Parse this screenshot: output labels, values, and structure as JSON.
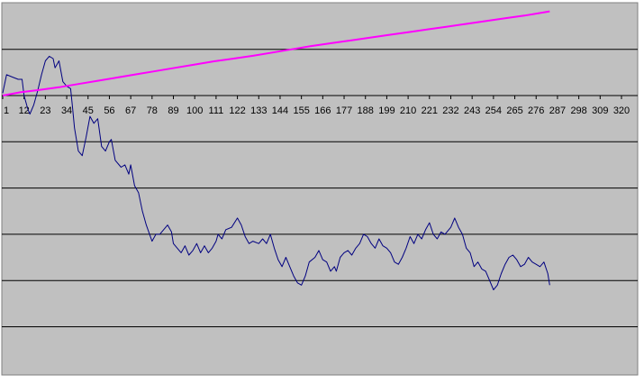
{
  "chart_data": {
    "type": "line",
    "title": "",
    "xlabel": "",
    "ylabel": "",
    "x_tick_labels": [
      "1",
      "12",
      "23",
      "34",
      "45",
      "56",
      "67",
      "78",
      "89",
      "100",
      "111",
      "122",
      "133",
      "144",
      "155",
      "166",
      "177",
      "188",
      "199",
      "210",
      "221",
      "232",
      "243",
      "254",
      "265",
      "276",
      "287",
      "298",
      "309",
      "320"
    ],
    "x_range": [
      1,
      326
    ],
    "y_range": [
      -6,
      2
    ],
    "y_gridlines": [
      -5,
      -4,
      -3,
      -2,
      -1,
      0,
      1
    ],
    "grid": true,
    "legend": "none",
    "plot_background": "#c0c0c0",
    "series": [
      {
        "color": "#000080",
        "points": [
          [
            1,
            0.05
          ],
          [
            3,
            0.45
          ],
          [
            6,
            0.4
          ],
          [
            9,
            0.35
          ],
          [
            11,
            0.35
          ],
          [
            12,
            0.0
          ],
          [
            14,
            -0.3
          ],
          [
            15,
            -0.4
          ],
          [
            17,
            -0.2
          ],
          [
            19,
            0.1
          ],
          [
            21,
            0.45
          ],
          [
            23,
            0.75
          ],
          [
            25,
            0.85
          ],
          [
            27,
            0.8
          ],
          [
            28,
            0.6
          ],
          [
            30,
            0.75
          ],
          [
            32,
            0.3
          ],
          [
            34,
            0.2
          ],
          [
            36,
            0.15
          ],
          [
            37,
            -0.25
          ],
          [
            38,
            -0.7
          ],
          [
            40,
            -1.2
          ],
          [
            42,
            -1.3
          ],
          [
            44,
            -0.9
          ],
          [
            46,
            -0.45
          ],
          [
            48,
            -0.6
          ],
          [
            50,
            -0.5
          ],
          [
            52,
            -1.1
          ],
          [
            54,
            -1.2
          ],
          [
            56,
            -1.0
          ],
          [
            57,
            -0.95
          ],
          [
            59,
            -1.4
          ],
          [
            62,
            -1.55
          ],
          [
            64,
            -1.5
          ],
          [
            66,
            -1.7
          ],
          [
            67,
            -1.5
          ],
          [
            69,
            -1.95
          ],
          [
            71,
            -2.1
          ],
          [
            73,
            -2.5
          ],
          [
            75,
            -2.8
          ],
          [
            78,
            -3.15
          ],
          [
            80,
            -3.0
          ],
          [
            82,
            -3.0
          ],
          [
            84,
            -2.9
          ],
          [
            86,
            -2.8
          ],
          [
            88,
            -2.95
          ],
          [
            89,
            -3.2
          ],
          [
            91,
            -3.3
          ],
          [
            93,
            -3.4
          ],
          [
            95,
            -3.25
          ],
          [
            97,
            -3.45
          ],
          [
            99,
            -3.35
          ],
          [
            101,
            -3.2
          ],
          [
            103,
            -3.4
          ],
          [
            105,
            -3.25
          ],
          [
            107,
            -3.4
          ],
          [
            109,
            -3.3
          ],
          [
            111,
            -3.15
          ],
          [
            112,
            -3.0
          ],
          [
            114,
            -3.1
          ],
          [
            116,
            -2.9
          ],
          [
            119,
            -2.85
          ],
          [
            122,
            -2.65
          ],
          [
            124,
            -2.8
          ],
          [
            126,
            -3.05
          ],
          [
            128,
            -3.2
          ],
          [
            130,
            -3.15
          ],
          [
            133,
            -3.2
          ],
          [
            135,
            -3.1
          ],
          [
            137,
            -3.2
          ],
          [
            139,
            -3.0
          ],
          [
            141,
            -3.3
          ],
          [
            143,
            -3.55
          ],
          [
            145,
            -3.7
          ],
          [
            147,
            -3.5
          ],
          [
            149,
            -3.7
          ],
          [
            151,
            -3.9
          ],
          [
            153,
            -4.05
          ],
          [
            155,
            -4.1
          ],
          [
            157,
            -3.9
          ],
          [
            159,
            -3.6
          ],
          [
            162,
            -3.5
          ],
          [
            164,
            -3.35
          ],
          [
            166,
            -3.55
          ],
          [
            168,
            -3.6
          ],
          [
            170,
            -3.8
          ],
          [
            172,
            -3.7
          ],
          [
            173,
            -3.8
          ],
          [
            175,
            -3.5
          ],
          [
            177,
            -3.4
          ],
          [
            179,
            -3.35
          ],
          [
            181,
            -3.45
          ],
          [
            183,
            -3.3
          ],
          [
            185,
            -3.2
          ],
          [
            187,
            -3.0
          ],
          [
            189,
            -3.05
          ],
          [
            191,
            -3.2
          ],
          [
            193,
            -3.3
          ],
          [
            195,
            -3.1
          ],
          [
            197,
            -3.25
          ],
          [
            199,
            -3.3
          ],
          [
            201,
            -3.4
          ],
          [
            203,
            -3.6
          ],
          [
            205,
            -3.65
          ],
          [
            207,
            -3.5
          ],
          [
            209,
            -3.3
          ],
          [
            211,
            -3.05
          ],
          [
            213,
            -3.2
          ],
          [
            215,
            -3.0
          ],
          [
            217,
            -3.1
          ],
          [
            219,
            -2.9
          ],
          [
            221,
            -2.75
          ],
          [
            223,
            -3.0
          ],
          [
            225,
            -3.1
          ],
          [
            227,
            -2.95
          ],
          [
            229,
            -3.0
          ],
          [
            232,
            -2.85
          ],
          [
            234,
            -2.65
          ],
          [
            236,
            -2.85
          ],
          [
            238,
            -3.0
          ],
          [
            240,
            -3.3
          ],
          [
            242,
            -3.4
          ],
          [
            244,
            -3.7
          ],
          [
            246,
            -3.6
          ],
          [
            248,
            -3.75
          ],
          [
            250,
            -3.8
          ],
          [
            252,
            -4.0
          ],
          [
            254,
            -4.2
          ],
          [
            256,
            -4.1
          ],
          [
            258,
            -3.85
          ],
          [
            260,
            -3.65
          ],
          [
            262,
            -3.5
          ],
          [
            264,
            -3.45
          ],
          [
            266,
            -3.55
          ],
          [
            268,
            -3.7
          ],
          [
            270,
            -3.65
          ],
          [
            272,
            -3.5
          ],
          [
            274,
            -3.6
          ],
          [
            276,
            -3.65
          ],
          [
            278,
            -3.7
          ],
          [
            280,
            -3.6
          ],
          [
            282,
            -3.85
          ],
          [
            283,
            -4.1
          ]
        ]
      },
      {
        "color": "#ff00ff",
        "points": [
          [
            1,
            0.0
          ],
          [
            10,
            0.07
          ],
          [
            20,
            0.12
          ],
          [
            30,
            0.18
          ],
          [
            40,
            0.25
          ],
          [
            50,
            0.32
          ],
          [
            60,
            0.39
          ],
          [
            70,
            0.46
          ],
          [
            80,
            0.53
          ],
          [
            90,
            0.6
          ],
          [
            100,
            0.67
          ],
          [
            110,
            0.74
          ],
          [
            120,
            0.8
          ],
          [
            130,
            0.86
          ],
          [
            140,
            0.93
          ],
          [
            150,
            1.0
          ],
          [
            160,
            1.07
          ],
          [
            170,
            1.13
          ],
          [
            180,
            1.19
          ],
          [
            190,
            1.25
          ],
          [
            200,
            1.31
          ],
          [
            210,
            1.37
          ],
          [
            220,
            1.43
          ],
          [
            230,
            1.49
          ],
          [
            240,
            1.55
          ],
          [
            250,
            1.61
          ],
          [
            260,
            1.67
          ],
          [
            270,
            1.73
          ],
          [
            283,
            1.82
          ]
        ]
      }
    ]
  }
}
